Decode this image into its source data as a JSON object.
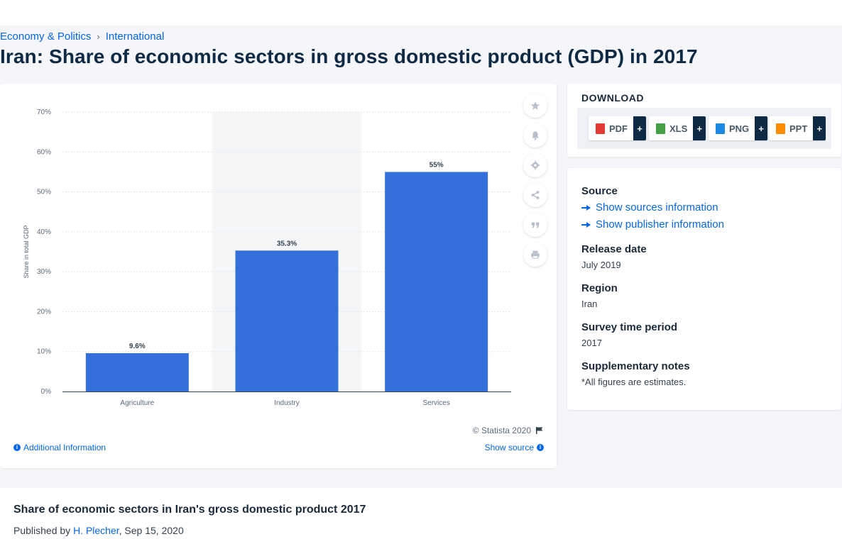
{
  "breadcrumb": {
    "items": [
      "Economy & Politics",
      "International"
    ],
    "separator": "›"
  },
  "page_title": "Iran: Share of economic sectors in gross domestic product (GDP) in 2017",
  "chart_data": {
    "type": "bar",
    "categories": [
      "Agriculture",
      "Industry",
      "Services"
    ],
    "values": [
      9.6,
      35.3,
      55
    ],
    "data_labels": [
      "9.6%",
      "35.3%",
      "55%"
    ],
    "ylabel": "Share in total GDP",
    "ylim": [
      0,
      70
    ],
    "yticks": [
      "0%",
      "10%",
      "20%",
      "30%",
      "40%",
      "50%",
      "60%",
      "70%"
    ],
    "grid": true,
    "highlighted_category": "Industry",
    "bar_color": "#3370dc"
  },
  "chart_footer": {
    "copyright": "© Statista 2020",
    "additional_info": "Additional Information",
    "show_source": "Show source"
  },
  "tools": [
    "star-icon",
    "bell-icon",
    "gear-icon",
    "share-icon",
    "quote-icon",
    "print-icon"
  ],
  "download": {
    "title": "DOWNLOAD",
    "buttons": [
      {
        "label": "PDF",
        "icon": "pdf-file-icon",
        "color": "#e53935"
      },
      {
        "label": "XLS",
        "icon": "xls-file-icon",
        "color": "#43a047"
      },
      {
        "label": "PNG",
        "icon": "png-file-icon",
        "color": "#1e88e5"
      },
      {
        "label": "PPT",
        "icon": "ppt-file-icon",
        "color": "#fb8c00"
      }
    ],
    "plus": "+"
  },
  "info": {
    "source_heading": "Source",
    "show_sources": "Show sources information",
    "show_publisher": "Show publisher information",
    "release_heading": "Release date",
    "release_value": "July 2019",
    "region_heading": "Region",
    "region_value": "Iran",
    "survey_heading": "Survey time period",
    "survey_value": "2017",
    "notes_heading": "Supplementary notes",
    "notes_value": "*All figures are estimates."
  },
  "description": {
    "title": "Share of economic sectors in Iran's gross domestic product 2017",
    "published_prefix": "Published by",
    "author": "H. Plecher",
    "date": ", Sep 15, 2020"
  }
}
